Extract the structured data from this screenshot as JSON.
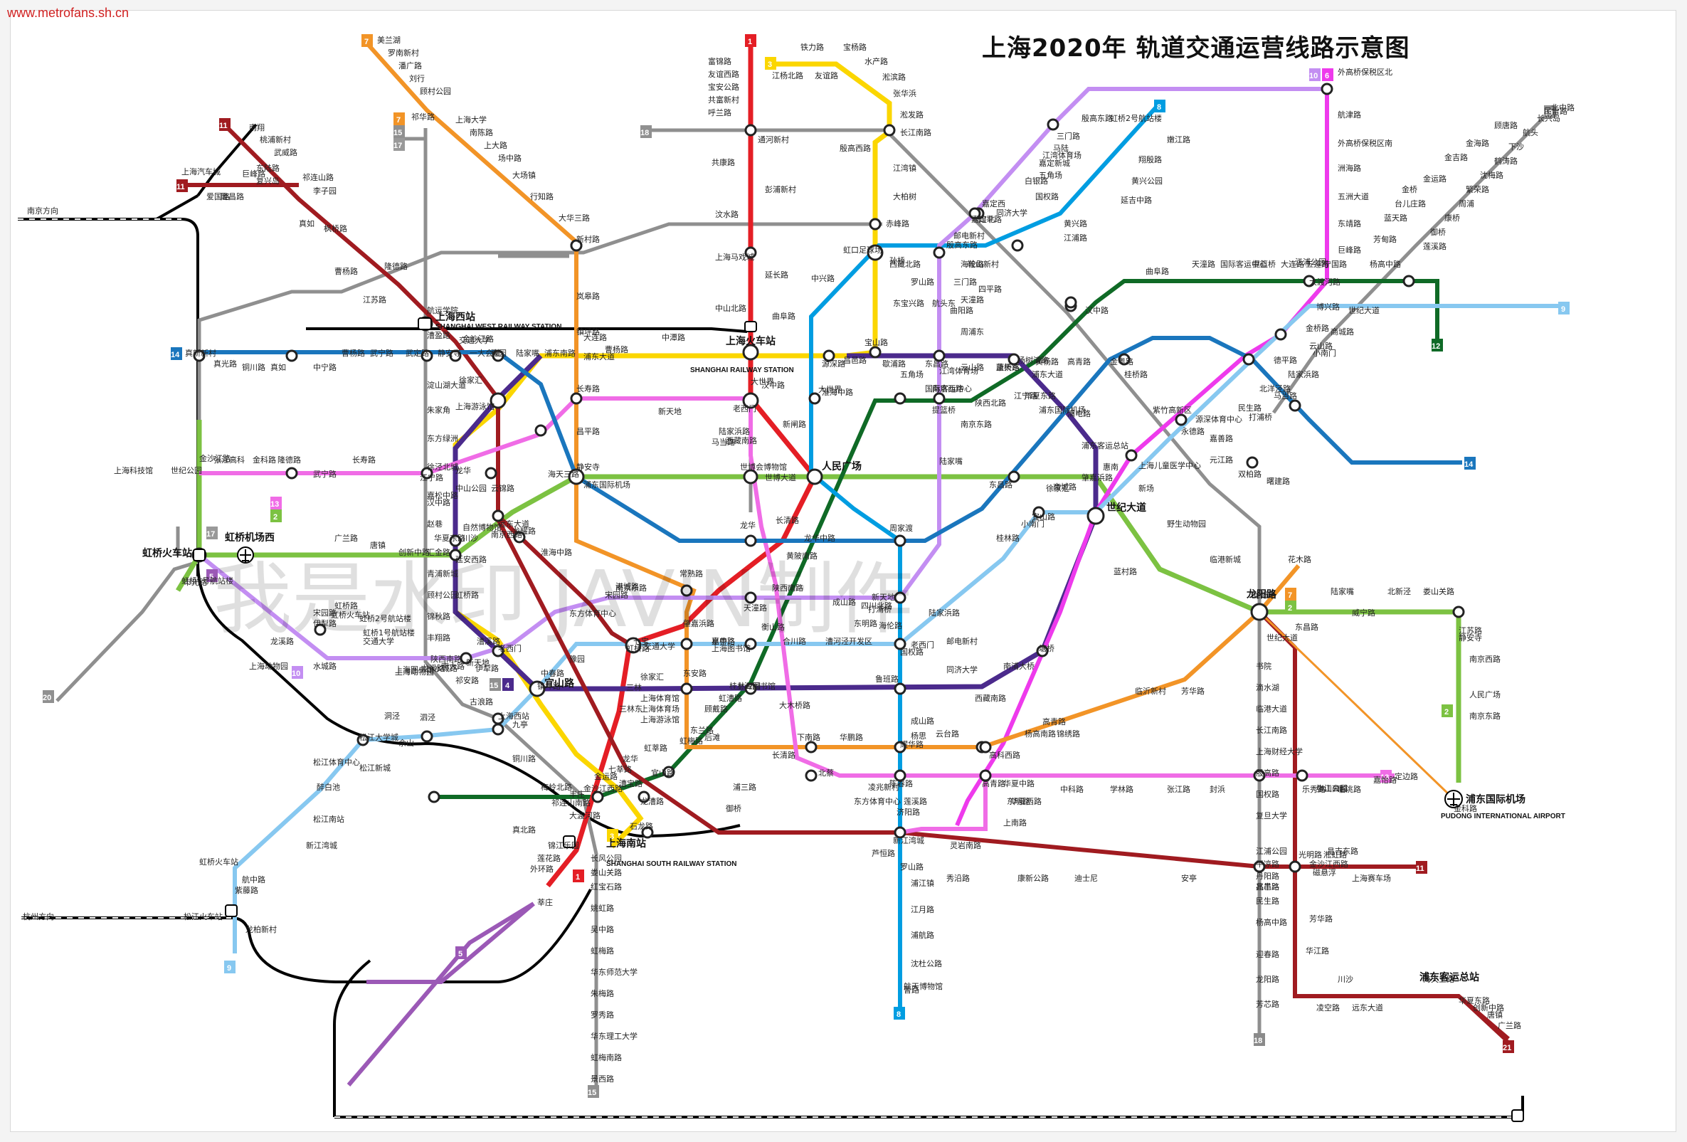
{
  "header": {
    "source_url": "www.metrofans.sh.cn",
    "title": "上海2020年 轨道交通运营线路示意图"
  },
  "watermark": "我是水印 JAVIN制作",
  "colors": {
    "line1": "#e41e25",
    "line2": "#7cc242",
    "line3": "#fbd600",
    "line4": "#4b2a8c",
    "line5": "#9b59b6",
    "line6": "#ee3aec",
    "line7": "#f29427",
    "line8": "#009de1",
    "line9": "#87c8f0",
    "line10": "#c38ef2",
    "line11": "#a01b20",
    "line12": "#0f6a26",
    "line13": "#f06ce6",
    "line14": "#1a76bd",
    "line15": "#909090",
    "line17": "#999999",
    "line18": "#8a8a8a",
    "line19": "#8f8f8f",
    "line20": "#8f8f8f",
    "line21": "#a01b20",
    "rail": "#000000"
  },
  "line_badges": [
    "1",
    "2",
    "3",
    "4",
    "5",
    "6",
    "7",
    "8",
    "9",
    "10",
    "11",
    "12",
    "13",
    "14",
    "15",
    "17",
    "18",
    "19",
    "20",
    "21"
  ],
  "directions": {
    "nanjing": "南京方向",
    "hangzhou": "杭州方向"
  },
  "major_stations": [
    {
      "id": "shanghai-west",
      "name": "上海西站",
      "en": "SHANGHAI WEST RAILWAY STATION"
    },
    {
      "id": "shanghai-station",
      "name": "上海火车站",
      "en": "SHANGHAI RAILWAY STATION"
    },
    {
      "id": "shanghai-south",
      "name": "上海南站",
      "en": "SHANGHAI SOUTH RAILWAY STATION"
    },
    {
      "id": "pudong-airport",
      "name": "浦东国际机场",
      "en": "PUDONG INTERNATIONAL AIRPORT"
    },
    {
      "id": "hongqiao-station",
      "name": "虹桥火车站",
      "en": ""
    },
    {
      "id": "hongqiao-airport",
      "name": "虹桥机场西",
      "en": ""
    },
    {
      "id": "peoples-square",
      "name": "人民广场",
      "en": ""
    },
    {
      "id": "century-avenue",
      "name": "世纪大道",
      "en": ""
    },
    {
      "id": "longyang-road",
      "name": "龙阳路",
      "en": ""
    },
    {
      "id": "yishan-road",
      "name": "宜山路",
      "en": ""
    },
    {
      "id": "pudong-bus",
      "name": "浦东客运总站",
      "en": ""
    },
    {
      "id": "songjiang-rail",
      "name": "松江火车站",
      "en": ""
    }
  ],
  "stations": [
    "美兰湖",
    "罗南新村",
    "潘广路",
    "刘行",
    "顾村公园",
    "祁华路",
    "上海大学",
    "南陈路",
    "上大路",
    "场中路",
    "大场镇",
    "行知路",
    "大华三路",
    "新村路",
    "岚皋路",
    "镇坪路",
    "长寿路",
    "昌平路",
    "静安寺",
    "常熟路",
    "肇嘉浜路",
    "东安路",
    "后滩",
    "长清路",
    "耀华路",
    "云台路",
    "高科西路",
    "杨高南路",
    "锦绣路",
    "芳华路",
    "龙阳路",
    "花木路",
    "富锦路",
    "友谊西路",
    "宝安公路",
    "共富新村",
    "呼兰路",
    "通河新村",
    "共康路",
    "彭浦新村",
    "汶水路",
    "上海马戏城",
    "延长路",
    "中山北路",
    "汉中路",
    "新闸路",
    "黄陂南路",
    "陕西南路",
    "衡山路",
    "徐家汇",
    "上海体育馆",
    "上海体育场",
    "上海游泳馆",
    "漕宝路",
    "龙漕路",
    "石龙路",
    "锦江乐园",
    "莲花路",
    "外环路",
    "莘庄",
    "铁力路",
    "宝杨路",
    "友谊路",
    "江杨北路",
    "水产路",
    "淞滨路",
    "张华浜",
    "淞发路",
    "长江南路",
    "殷高西路",
    "江湾镇",
    "大柏树",
    "赤峰路",
    "虹口足球场",
    "东宝兴路",
    "宝山路",
    "中潭路",
    "曹杨路",
    "金沙江路",
    "中山公园",
    "延安西路",
    "虹桥路",
    "漕溪路",
    "龙华",
    "宜山路",
    "镇坪路",
    "大连路",
    "杨树浦路",
    "浦东大道",
    "浦电路",
    "蓝村路",
    "塘桥",
    "南浦大桥",
    "西藏南路",
    "鲁班路",
    "大木桥路",
    "上海图书馆",
    "港城路",
    "外高桥保税区北",
    "航津路",
    "外高桥保税区南",
    "洲海路",
    "五洲大道",
    "东靖路",
    "巨峰路",
    "五莲路",
    "博兴路",
    "金桥路",
    "云山路",
    "德平路",
    "北洋泾路",
    "民生路",
    "源深体育中心",
    "上海儿童医学中心",
    "临沂新村",
    "高青路",
    "东明路",
    "高青路",
    "华夏西路",
    "上南路",
    "灵岩南路",
    "济阳路",
    "新江湾城",
    "殷高东路",
    "三门路",
    "江湾体育场",
    "五角场",
    "国权路",
    "同济大学",
    "四平路",
    "邮电新村",
    "海伦路",
    "天潼路",
    "国际客运中心",
    "提篮桥",
    "南京东路",
    "陆家嘴",
    "东昌路",
    "商城路",
    "小南门",
    "陆家浜路",
    "老西门",
    "新天地",
    "打浦桥",
    "嘉善路",
    "上海图书馆",
    "交通大学",
    "虹桥路",
    "宋园路",
    "伊犁路",
    "水城路",
    "龙溪路",
    "上海动物园",
    "虹桥1号航站楼",
    "虹桥2号航站楼",
    "虹桥火车站",
    "市光路",
    "嫩江路",
    "翔殷路",
    "黄兴公园",
    "延吉中路",
    "黄兴路",
    "江浦路",
    "鞍山新村",
    "四平路",
    "曲阳路",
    "西藏北路",
    "中兴路",
    "曲阜路",
    "大世界",
    "周家渡",
    "成山路",
    "杨思",
    "东方体育中心",
    "凌兆新村",
    "芦恒路",
    "浦江镇",
    "江月路",
    "浦航路",
    "沈杜公路",
    "航天博物馆",
    "曹路",
    "民雷路",
    "顾唐路",
    "金海路",
    "金吉路",
    "金运路",
    "金桥",
    "台儿庄路",
    "蓝天路",
    "芳甸路",
    "杨高中路",
    "世纪大道",
    "商城路",
    "小南门",
    "陆家浜路",
    "马当路",
    "打浦桥",
    "嘉善路",
    "肇嘉浜路",
    "徐家汇",
    "宜山路",
    "桂林路",
    "漕河泾开发区",
    "合川路",
    "星中路",
    "七宝",
    "中春路",
    "九亭",
    "泗泾",
    "佘山",
    "洞泾",
    "松江大学城",
    "松江新城",
    "松江体育中心",
    "醉白池",
    "松江南站",
    "新江湾城",
    "虹桥火车站",
    "航中路",
    "紫藤路",
    "龙柏新村",
    "虹桥2号航站楼",
    "虹桥1号航站楼",
    "上海动物园",
    "龙溪路",
    "水城路",
    "伊犁路",
    "宋园路",
    "虹桥路",
    "交通大学",
    "上海图书馆",
    "陕西南路",
    "新天地",
    "老西门",
    "豫园",
    "南京东路",
    "天潼路",
    "四川北路",
    "海伦路",
    "邮电新村",
    "同济大学",
    "国权路",
    "五角场",
    "江湾体育场",
    "三门路",
    "殷高东路",
    "嘉定北",
    "嘉定西",
    "白银路",
    "嘉定新城",
    "马陆",
    "南翔",
    "桃浦新村",
    "武威路",
    "祁连山路",
    "李子园",
    "真如",
    "枫桥路",
    "曹杨路",
    "隆德路",
    "江苏路",
    "交通大学",
    "徐家汇",
    "上海游泳馆",
    "龙华",
    "云锦路",
    "龙耀路",
    "东方体育中心",
    "三林",
    "三林东",
    "浦三路",
    "御桥",
    "罗山路",
    "秀沿路",
    "康新公路",
    "迪士尼",
    "安亭",
    "兆丰路",
    "光明路",
    "昌吉东路",
    "上海赛车场",
    "上海汽车城",
    "巨峰路",
    "东陆路",
    "复兴岛",
    "爱国路",
    "隆昌路",
    "宁国路",
    "江浦公园",
    "大连路",
    "提篮桥",
    "国际客运中心",
    "天潼路",
    "曲阜路",
    "汉中路",
    "江宁路",
    "陕西北路",
    "南京西路",
    "淮海中路",
    "大世界",
    "老西门",
    "陆家浜路",
    "西藏南路",
    "龙华",
    "龙华中路",
    "桂林公园",
    "虹漕路",
    "顾戴路",
    "东兰路",
    "虹梅路",
    "虹莘路",
    "七莘路",
    "金运路",
    "金沙江西路",
    "丰庄",
    "祁连山南路",
    "真北路",
    "大渡河路",
    "金沙江路",
    "隆德路",
    "武宁路",
    "长寿路",
    "江宁路",
    "汉中路",
    "自然博物馆",
    "南京西路",
    "淮海中路",
    "新天地",
    "马当路",
    "世博会博物馆",
    "世博大道",
    "长清路",
    "成山路",
    "东明路",
    "华鹏路",
    "下南路",
    "北蔡",
    "陈春路",
    "莲溪路",
    "华夏中路",
    "中科路",
    "学林路",
    "张江路",
    "封浜",
    "乐秀路",
    "临洮路",
    "嘉怡路",
    "定边路",
    "真新新村",
    "真光路",
    "铜川路",
    "真如",
    "中宁路",
    "曹杨路",
    "武宁路",
    "武定路",
    "静安寺",
    "一大会址",
    "豫园",
    "陆家嘴",
    "浦东南路",
    "浦东大道",
    "源深路",
    "昌邑路",
    "歇浦路",
    "东昌路",
    "云山路",
    "蓝天路",
    "黄杨路",
    "高青路",
    "金粤路",
    "桂桥路",
    "紫竹高新区",
    "永德路",
    "元江路",
    "双柏路",
    "曙建路",
    "景西路",
    "虹梅南路",
    "华东理工大学",
    "罗秀路",
    "朱梅路",
    "华东师范大学",
    "虹梅路",
    "吴中路",
    "姚虹路",
    "红宝石路",
    "娄山关路",
    "长风公园",
    "大渡河路",
    "梅岭北路",
    "铜川路",
    "上海西站",
    "古浪路",
    "祁安路",
    "南大路",
    "丰翔路",
    "锦秋路",
    "顾村公园",
    "青浦新城",
    "汇金路",
    "赵巷",
    "嘉松中路",
    "徐泾北城",
    "东方绿洲",
    "朱家角",
    "淀山湖大道",
    "漕盈路",
    "航运学院",
    "长兴岛",
    "航头",
    "下沙",
    "鹤涛路",
    "沈梅路",
    "繁荣路",
    "周浦",
    "康桥",
    "御桥",
    "莲溪路",
    "北中路",
    "芳芯路",
    "龙阳路",
    "迎春路",
    "杨高中路",
    "民生路",
    "昌邑路",
    "丹阳路",
    "平凉路",
    "江浦公园",
    "复旦大学",
    "国权路",
    "殷高路",
    "上海财经大学",
    "长江南路",
    "临港大道",
    "滴水湖",
    "书院",
    "临港新城",
    "野生动物园",
    "新场",
    "惠南",
    "浦东客运总站",
    "浦东国际机场",
    "华夏东路",
    "康桥东",
    "周浦东",
    "航头东",
    "罗山路",
    "孙桥",
    "广兰路",
    "唐镇",
    "创新中路",
    "华夏东路",
    "川沙",
    "凌空路",
    "远东大道",
    "海天三路",
    "金科路",
    "张江高科",
    "磁悬浮",
    "芳华路",
    "华江路",
    "金沙江西路",
    "淞虹路",
    "威宁路",
    "北新泾",
    "娄山关路",
    "中山公园",
    "江苏路",
    "静安寺",
    "南京西路",
    "人民广场",
    "南京东路",
    "陆家嘴",
    "东昌路",
    "世纪大道",
    "上海科技馆",
    "世纪公园",
    "张江高科",
    "金科路",
    "广兰路",
    "唐镇",
    "创新中路",
    "华夏东路",
    "川沙",
    "远东大道",
    "海天三路",
    "浦东国际机场"
  ]
}
